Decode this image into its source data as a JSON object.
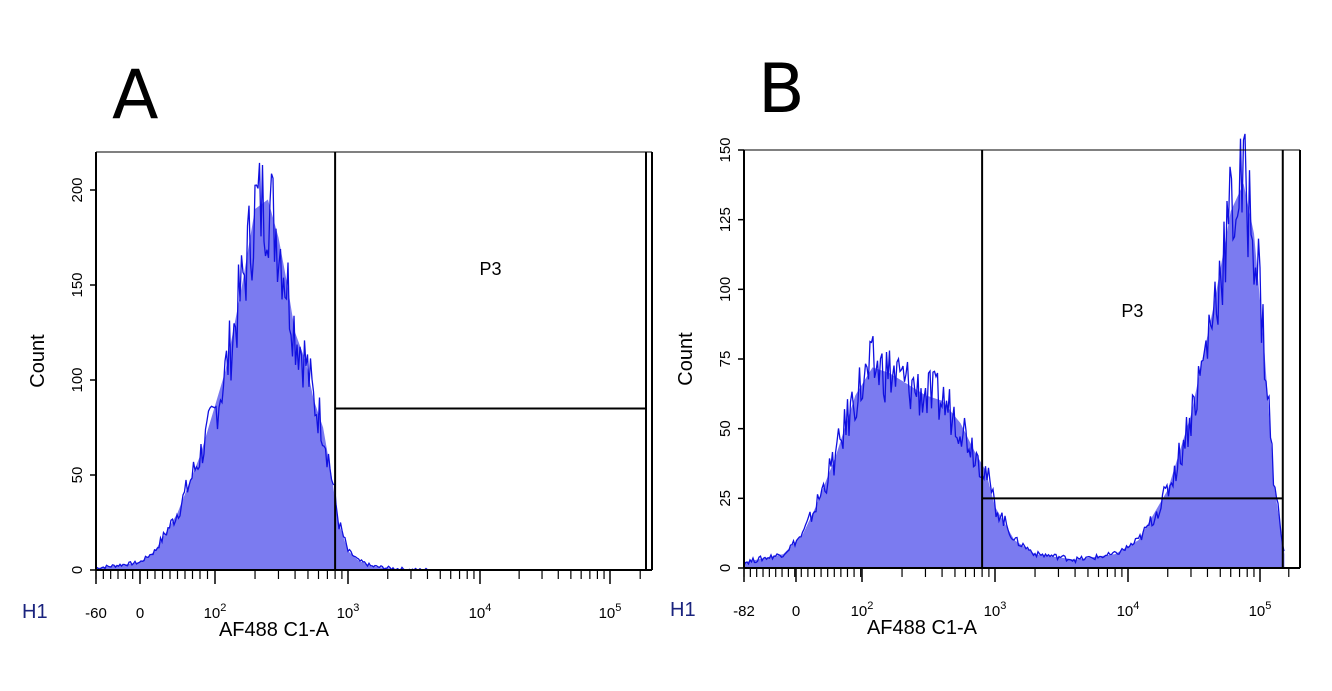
{
  "panels": [
    {
      "letter": "A",
      "histogram_label": "H1",
      "gate_label": "P3",
      "xlabel": "AF488 C1-A",
      "ylabel": "Count"
    },
    {
      "letter": "B",
      "histogram_label": "H1",
      "gate_label": "P3",
      "xlabel": "AF488 C1-A",
      "ylabel": "Count"
    }
  ],
  "colors": {
    "fill": "#7b7bf0",
    "line": "#1010e0",
    "axis": "#000000"
  },
  "chart_data": [
    {
      "type": "area",
      "title": "",
      "xlabel": "AF488 C1-A",
      "ylabel": "Count",
      "x_scale": "biexponential (log)",
      "x_ticks": [
        {
          "label": "-60",
          "value": -60
        },
        {
          "label": "0",
          "value": 0
        },
        {
          "label": "10^2",
          "value": 100
        },
        {
          "label": "10^3",
          "value": 1000
        },
        {
          "label": "10^4",
          "value": 10000
        },
        {
          "label": "10^5",
          "value": 100000
        }
      ],
      "y_ticks": [
        0,
        50,
        100,
        150,
        200
      ],
      "ylim": [
        0,
        220
      ],
      "gate": {
        "name": "P3",
        "x_start": 800,
        "x_end": 262144,
        "count_level": 85
      },
      "series": [
        {
          "name": "H1",
          "x": [
            -60,
            0,
            20,
            50,
            80,
            120,
            160,
            200,
            250,
            300,
            350,
            400,
            480,
            550,
            650,
            750,
            850,
            1000,
            1200,
            1500,
            2000,
            3000,
            5000
          ],
          "values": [
            1,
            4,
            10,
            30,
            60,
            105,
            150,
            190,
            195,
            175,
            150,
            125,
            110,
            90,
            75,
            50,
            25,
            10,
            5,
            2,
            1,
            0,
            0
          ]
        }
      ]
    },
    {
      "type": "area",
      "title": "",
      "xlabel": "AF488 C1-A",
      "ylabel": "Count",
      "x_scale": "biexponential (log)",
      "x_ticks": [
        {
          "label": "-82",
          "value": -82
        },
        {
          "label": "0",
          "value": 0
        },
        {
          "label": "10^2",
          "value": 100
        },
        {
          "label": "10^3",
          "value": 1000
        },
        {
          "label": "10^4",
          "value": 10000
        },
        {
          "label": "10^5",
          "value": 100000
        }
      ],
      "y_ticks": [
        0,
        25,
        50,
        75,
        100,
        125,
        150
      ],
      "ylim": [
        0,
        150
      ],
      "gate": {
        "name": "P3",
        "x_start": 800,
        "x_end": 200000,
        "count_level": 25
      },
      "series": [
        {
          "name": "H1",
          "x": [
            -82,
            -20,
            10,
            30,
            60,
            90,
            120,
            160,
            220,
            300,
            400,
            550,
            700,
            850,
            1000,
            1400,
            2000,
            4000,
            8000,
            12000,
            20000,
            30000,
            45000,
            60000,
            75000,
            90000,
            110000,
            140000,
            180000
          ],
          "values": [
            2,
            5,
            12,
            22,
            40,
            62,
            72,
            70,
            66,
            62,
            60,
            52,
            42,
            35,
            22,
            10,
            5,
            3,
            5,
            10,
            28,
            55,
            95,
            128,
            138,
            120,
            80,
            30,
            5
          ]
        }
      ]
    }
  ]
}
